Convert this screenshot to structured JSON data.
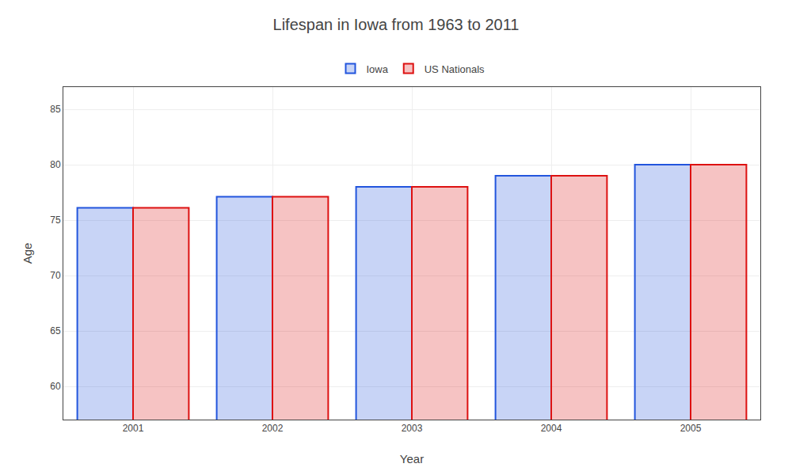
{
  "chart_data": {
    "type": "bar",
    "title": "Lifespan in Iowa from 1963 to 2011",
    "xlabel": "Year",
    "ylabel": "Age",
    "categories": [
      2001,
      2002,
      2003,
      2004,
      2005
    ],
    "series": [
      {
        "name": "Iowa",
        "color": "#2255dd",
        "values": [
          76.1,
          77.1,
          78.0,
          79.0,
          80.0
        ]
      },
      {
        "name": "US Nationals",
        "color": "#dd1111",
        "values": [
          76.1,
          77.1,
          78.0,
          79.0,
          80.0
        ]
      }
    ],
    "ylim": [
      57,
      87
    ],
    "yticks": [
      60,
      65,
      70,
      75,
      80,
      85
    ],
    "grid": true,
    "legend": "top"
  }
}
